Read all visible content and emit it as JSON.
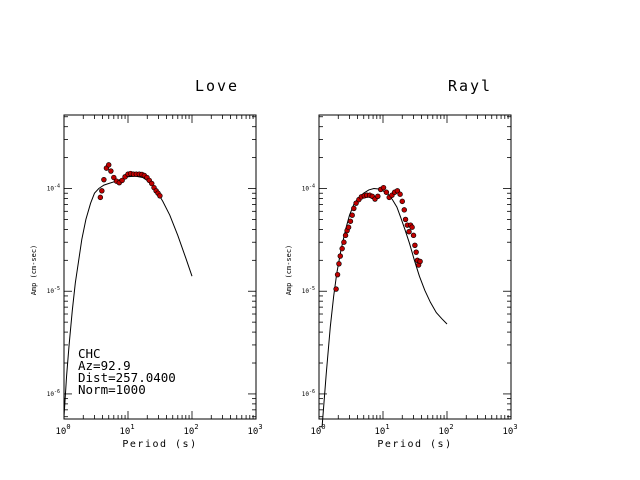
{
  "station_annotation": [
    "CHC",
    "Az=92.9",
    "Dist=257.0400",
    "Norm=1000"
  ],
  "chart_data": [
    {
      "type": "scatter",
      "title": "Love",
      "xlabel": "Period (s)",
      "ylabel": "Amp (cm-sec)",
      "xscale": "log",
      "yscale": "log",
      "xlim": [
        1,
        1000
      ],
      "ylim": [
        5.7e-07,
        0.00052
      ],
      "x_ticks": [
        1,
        10,
        100,
        1000
      ],
      "x_tick_labels": [
        "10^0",
        "10^1",
        "10^2",
        "10^3"
      ],
      "y_ticks": [
        1e-06,
        1e-05,
        0.0001
      ],
      "y_tick_labels": [
        "10^-6",
        "10^-5",
        "10^-4"
      ],
      "grid": false,
      "series": [
        {
          "kind": "points",
          "color": "#c00000",
          "points": [
            [
              3.7,
              8.2e-05
            ],
            [
              3.9,
              9.5e-05
            ],
            [
              4.2,
              0.000122
            ],
            [
              4.6,
              0.000158
            ],
            [
              5.0,
              0.00017
            ],
            [
              5.4,
              0.000148
            ],
            [
              6.0,
              0.000128
            ],
            [
              6.6,
              0.000118
            ],
            [
              7.3,
              0.000114
            ],
            [
              8.1,
              0.00012
            ],
            [
              9.0,
              0.00013
            ],
            [
              10.0,
              0.000138
            ],
            [
              11.0,
              0.00014
            ],
            [
              12.2,
              0.000138
            ],
            [
              13.5,
              0.000138
            ],
            [
              15.0,
              0.000138
            ],
            [
              16.5,
              0.000137
            ],
            [
              18.0,
              0.000134
            ],
            [
              19.8,
              0.000128
            ],
            [
              21.5,
              0.00012
            ],
            [
              23.5,
              0.000112
            ],
            [
              25.5,
              0.000102
            ],
            [
              27.5,
              9.5e-05
            ],
            [
              29.5,
              9e-05
            ],
            [
              31.5,
              8.5e-05
            ]
          ]
        },
        {
          "kind": "line",
          "color": "#000000",
          "points": [
            [
              1.0,
              6e-07
            ],
            [
              1.1,
              1.5e-06
            ],
            [
              1.2,
              3e-06
            ],
            [
              1.35,
              6.5e-06
            ],
            [
              1.5,
              1.2e-05
            ],
            [
              1.7,
              2e-05
            ],
            [
              1.9,
              3.2e-05
            ],
            [
              2.2,
              5e-05
            ],
            [
              2.6,
              7.2e-05
            ],
            [
              3.0,
              9e-05
            ],
            [
              3.5,
              0.0001
            ],
            [
              4.2,
              0.000108
            ],
            [
              5.0,
              0.000112
            ],
            [
              6.5,
              0.000118
            ],
            [
              8.0,
              0.000124
            ],
            [
              10.0,
              0.00013
            ],
            [
              13.0,
              0.000132
            ],
            [
              17.0,
              0.000128
            ],
            [
              22.0,
              0.000115
            ],
            [
              28.0,
              9.5e-05
            ],
            [
              35.0,
              7.5e-05
            ],
            [
              45.0,
              5.5e-05
            ],
            [
              60.0,
              3.5e-05
            ],
            [
              80.0,
              2.1e-05
            ],
            [
              100.0,
              1.4e-05
            ]
          ]
        }
      ]
    },
    {
      "type": "scatter",
      "title": "Rayl",
      "xlabel": "Period (s)",
      "ylabel": "Amp (cm-sec)",
      "xscale": "log",
      "yscale": "log",
      "xlim": [
        1,
        1000
      ],
      "ylim": [
        5.7e-07,
        0.00052
      ],
      "x_ticks": [
        1,
        10,
        100,
        1000
      ],
      "x_tick_labels": [
        "10^0",
        "10^1",
        "10^2",
        "10^3"
      ],
      "y_ticks": [
        1e-06,
        1e-05,
        0.0001
      ],
      "y_tick_labels": [
        "10^-6",
        "10^-5",
        "10^-4"
      ],
      "grid": false,
      "series": [
        {
          "kind": "points",
          "color": "#c00000",
          "points": [
            [
              1.85,
              1.05e-05
            ],
            [
              1.95,
              1.45e-05
            ],
            [
              2.05,
              1.85e-05
            ],
            [
              2.15,
              2.2e-05
            ],
            [
              2.3,
              2.6e-05
            ],
            [
              2.45,
              3e-05
            ],
            [
              2.6,
              3.5e-05
            ],
            [
              2.75,
              3.9e-05
            ],
            [
              2.9,
              4.2e-05
            ],
            [
              3.1,
              4.8e-05
            ],
            [
              3.3,
              5.5e-05
            ],
            [
              3.5,
              6.4e-05
            ],
            [
              3.8,
              7.2e-05
            ],
            [
              4.2,
              7.8e-05
            ],
            [
              4.6,
              8.3e-05
            ],
            [
              5.1,
              8.5e-05
            ],
            [
              5.6,
              8.6e-05
            ],
            [
              6.2,
              8.6e-05
            ],
            [
              6.8,
              8.4e-05
            ],
            [
              7.5,
              7.9e-05
            ],
            [
              8.3,
              8.4e-05
            ],
            [
              9.2,
              9.8e-05
            ],
            [
              10.2,
              0.000102
            ],
            [
              11.3,
              9.2e-05
            ],
            [
              12.5,
              8.2e-05
            ],
            [
              13.8,
              8.6e-05
            ],
            [
              15.2,
              9.2e-05
            ],
            [
              16.8,
              9.5e-05
            ],
            [
              18.5,
              8.8e-05
            ],
            [
              20.0,
              7.5e-05
            ],
            [
              21.5,
              6.2e-05
            ],
            [
              22.5,
              5e-05
            ],
            [
              24.0,
              4.4e-05
            ],
            [
              25.5,
              3.8e-05
            ],
            [
              27.0,
              4.4e-05
            ],
            [
              28.5,
              4.2e-05
            ],
            [
              30.0,
              3.5e-05
            ],
            [
              31.5,
              2.8e-05
            ],
            [
              33.0,
              2.4e-05
            ],
            [
              34.5,
              2e-05
            ],
            [
              36.0,
              1.8e-05
            ],
            [
              38.0,
              1.95e-05
            ]
          ]
        },
        {
          "kind": "line",
          "color": "#000000",
          "points": [
            [
              1.0,
              4.8e-07
            ],
            [
              1.12,
              4.8e-07
            ],
            [
              1.3,
              1.6e-06
            ],
            [
              1.5,
              4.5e-06
            ],
            [
              1.7,
              9e-06
            ],
            [
              1.9,
              1.5e-05
            ],
            [
              2.2,
              2.5e-05
            ],
            [
              2.6,
              4e-05
            ],
            [
              3.0,
              5.5e-05
            ],
            [
              3.5,
              7e-05
            ],
            [
              4.2,
              8.2e-05
            ],
            [
              5.0,
              9e-05
            ],
            [
              6.0,
              9.7e-05
            ],
            [
              7.2,
              0.0001
            ],
            [
              8.5,
              9.9e-05
            ],
            [
              10.0,
              9.5e-05
            ],
            [
              12.0,
              8.8e-05
            ],
            [
              14.0,
              7.8e-05
            ],
            [
              16.5,
              6.6e-05
            ],
            [
              19.0,
              5.2e-05
            ],
            [
              22.0,
              4e-05
            ],
            [
              26.0,
              2.9e-05
            ],
            [
              31.0,
              2e-05
            ],
            [
              37.0,
              1.4e-05
            ],
            [
              45.0,
              1.02e-05
            ],
            [
              55.0,
              7.8e-06
            ],
            [
              68.0,
              6.2e-06
            ],
            [
              83.0,
              5.4e-06
            ],
            [
              100.0,
              4.8e-06
            ]
          ]
        }
      ]
    }
  ]
}
